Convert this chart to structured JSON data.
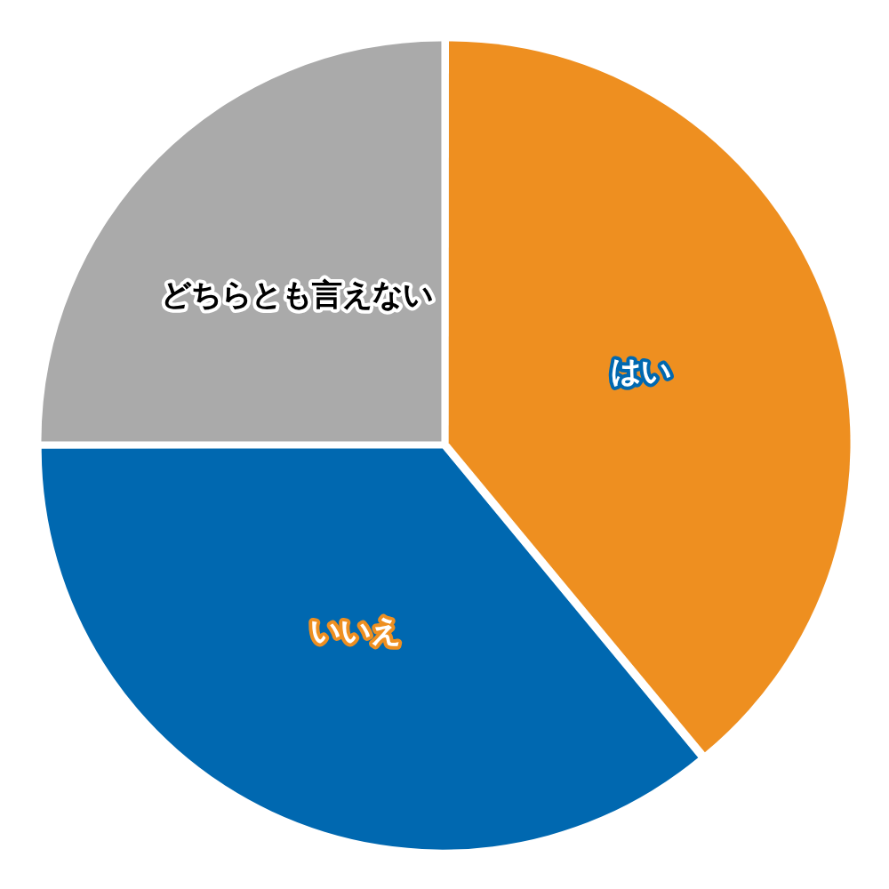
{
  "chart_data": {
    "type": "pie",
    "categories": [
      "はい",
      "いいえ",
      "どちらとも言えない"
    ],
    "values": [
      39,
      36,
      25
    ],
    "colors": [
      "#ee8f20",
      "#0068b0",
      "#aaaaaa"
    ],
    "legend": false
  }
}
